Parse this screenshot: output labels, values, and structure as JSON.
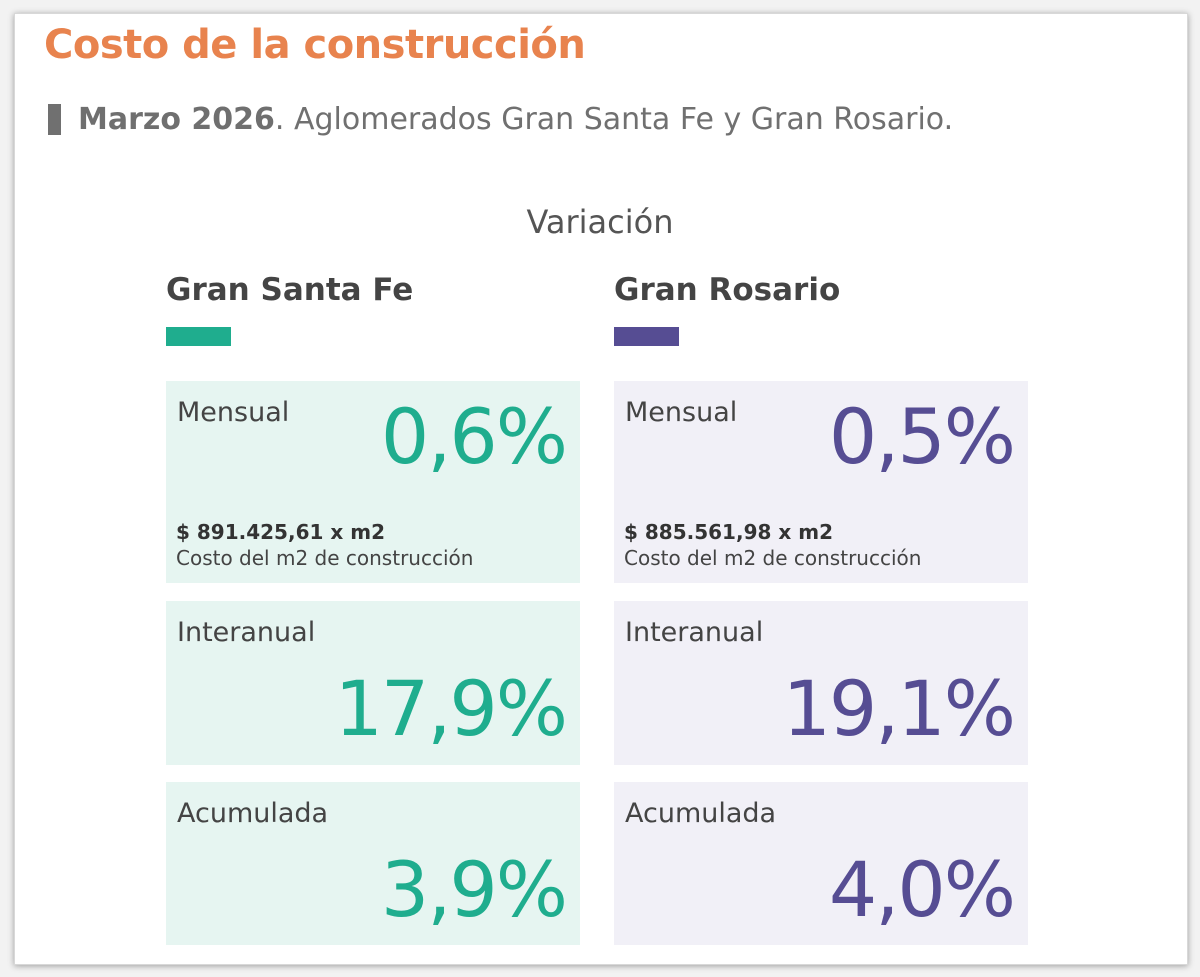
{
  "title": "Costo de la construcción",
  "subtitle": {
    "bold": "Marzo 2026",
    "rest": ". Aglomerados Gran Santa Fe y Gran Rosario."
  },
  "section_title": "Variación",
  "colors": {
    "title": "#e8834e",
    "santa_fe": "#1fad8e",
    "santa_fe_bg": "#e6f5f1",
    "rosario": "#564d93",
    "rosario_bg": "#f1f0f7"
  },
  "regions": [
    {
      "name": "Gran Santa Fe",
      "mensual": {
        "label": "Mensual",
        "value": "0,6%",
        "cost": "$ 891.425,61 x m2",
        "cost_label": "Costo del m2 de construcción"
      },
      "interanual": {
        "label": "Interanual",
        "value": "17,9%"
      },
      "acumulada": {
        "label": "Acumulada",
        "value": "3,9%"
      }
    },
    {
      "name": "Gran Rosario",
      "mensual": {
        "label": "Mensual",
        "value": "0,5%",
        "cost": "$ 885.561,98 x m2",
        "cost_label": "Costo del m2 de construcción"
      },
      "interanual": {
        "label": "Interanual",
        "value": "19,1%"
      },
      "acumulada": {
        "label": "Acumulada",
        "value": "4,0%"
      }
    }
  ]
}
